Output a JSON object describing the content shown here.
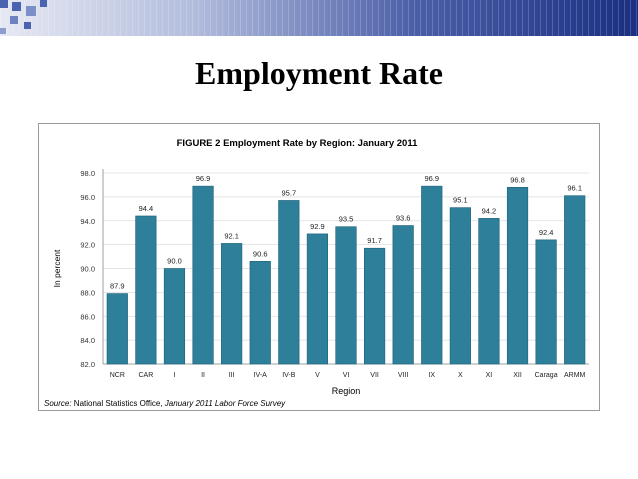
{
  "slide": {
    "title": "Employment Rate"
  },
  "colors": {
    "bar": "#2e7f99",
    "bar_edge": "#1d6079",
    "grid": "#dddddd",
    "band_dark": "#1b2f82",
    "deco": "#4a63b0"
  },
  "source": {
    "label": "Source:",
    "org": " National Statistics Office,",
    "rest": " January 2011 Labor Force Survey"
  },
  "chart_data": {
    "type": "bar",
    "title": "FIGURE 2 Employment Rate by Region: January 2011",
    "xlabel": "Region",
    "ylabel": "In percent",
    "ylim": [
      82.0,
      98.0
    ],
    "yticks": [
      "82.0",
      "84.0",
      "86.0",
      "88.0",
      "90.0",
      "92.0",
      "94.0",
      "96.0",
      "98.0"
    ],
    "grid": true,
    "legend": "none",
    "categories": [
      "NCR",
      "CAR",
      "I",
      "II",
      "III",
      "IV-A",
      "IV-B",
      "V",
      "VI",
      "VII",
      "VIII",
      "IX",
      "X",
      "XI",
      "XII",
      "Caraga",
      "ARMM"
    ],
    "values": [
      87.9,
      94.4,
      90.0,
      96.9,
      92.1,
      90.6,
      95.7,
      92.9,
      93.5,
      91.7,
      93.6,
      96.9,
      95.1,
      94.2,
      96.8,
      92.4,
      96.1
    ],
    "labels": [
      "87.9",
      "94.4",
      "90.0",
      "96.9",
      "92.1",
      "90.6",
      "95.7",
      "92.9",
      "93.5",
      "91.7",
      "93.6",
      "96.9",
      "95.1",
      "94.2",
      "96.8",
      "92.4",
      "96.1"
    ]
  }
}
